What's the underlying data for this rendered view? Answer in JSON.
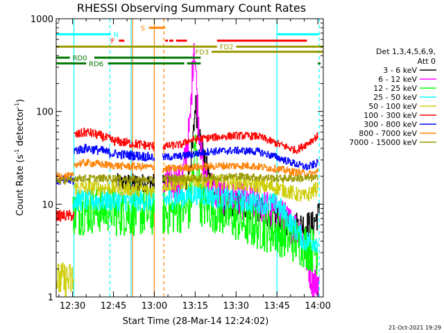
{
  "chart_data": {
    "type": "line",
    "title": "RHESSI Observing Summary Count Rates",
    "xlabel": "Start Time (28-Mar-14 12:24:02)",
    "ylabel": "Count Rate (s",
    "ylabel_sup": "-1",
    "ylabel_mid": " detector",
    "ylabel_close": ")",
    "yscale": "log",
    "ylim": [
      1,
      1000
    ],
    "xlim_min": [
      744,
      842
    ],
    "ytick_labels": [
      "1",
      "10",
      "100",
      "1000"
    ],
    "ytick_values": [
      1,
      10,
      100,
      1000
    ],
    "xtick_labels": [
      "12:30",
      "12:45",
      "13:00",
      "13:15",
      "13:30",
      "13:45",
      "14:00"
    ],
    "xtick_values": [
      750,
      765,
      780,
      795,
      810,
      825,
      840
    ],
    "legend_header": [
      "Det 1,3,4,5,6,9,",
      "Att 0"
    ],
    "footer": "21-Oct-2021 19:29",
    "series": [
      {
        "name": "3 - 6 keV",
        "color": "#000000",
        "segments": [
          {
            "x": [
              766,
              780
            ],
            "y": [
              17,
              17
            ],
            "noise": 0.1
          },
          {
            "x": [
              783,
              792
            ],
            "y": [
              17,
              17
            ],
            "noise": 0.1
          },
          {
            "x": [
              792,
              794,
              795,
              796,
              798,
              802,
              806,
              812,
              818,
              825,
              832,
              838,
              840.5
            ],
            "y": [
              18,
              40,
              125,
              70,
              30,
              13,
              10,
              10,
              9,
              7,
              6,
              6,
              8
            ],
            "noise": 0.15
          }
        ]
      },
      {
        "name": "6 - 12 keV",
        "color": "#ff00ff",
        "segments": [
          {
            "x": [
              783,
              790,
              793,
              794.5,
              796,
              798,
              804,
              810,
              818,
              825,
              830,
              834,
              836,
              838,
              840.5
            ],
            "y": [
              16,
              17,
              70,
              600,
              90,
              20,
              12,
              11,
              10,
              8,
              6,
              5,
              2.5,
              1.5,
              1.5
            ],
            "noise": 0.2
          }
        ]
      },
      {
        "name": "12 - 25 keV",
        "color": "#00ff00",
        "segments": [
          {
            "x": [
              750,
              765
            ],
            "y": [
              8,
              9
            ],
            "noise": 0.25
          },
          {
            "x": [
              765,
              780
            ],
            "y": [
              8,
              8
            ],
            "noise": 0.25
          },
          {
            "x": [
              783,
              793,
              795,
              797,
              805,
              815,
              825,
              832,
              840
            ],
            "y": [
              8,
              9,
              40,
              10,
              8,
              6,
              5,
              4,
              3
            ],
            "noise": 0.25
          }
        ]
      },
      {
        "name": "25 - 50 keV",
        "color": "#00ffff",
        "segments": [
          {
            "x": [
              750,
              765,
              780
            ],
            "y": [
              11,
              11,
              11
            ],
            "noise": 0.12
          },
          {
            "x": [
              783,
              795,
              810,
              825,
              835,
              840
            ],
            "y": [
              11,
              13,
              11,
              10,
              4,
              4
            ],
            "noise": 0.12
          }
        ]
      },
      {
        "name": "50 - 100 keV",
        "color": "#cccc00",
        "segments": [
          {
            "x": [
              744,
              748,
              750.5
            ],
            "y": [
              1.5,
              1.5,
              1.5
            ],
            "noise": 0.2
          },
          {
            "x": [
              750.5,
              758,
              765,
              780
            ],
            "y": [
              15,
              15,
              15,
              14
            ],
            "noise": 0.08
          },
          {
            "x": [
              783,
              795,
              810,
              825,
              835,
              840
            ],
            "y": [
              16,
              18,
              17,
              15,
              12,
              15
            ],
            "noise": 0.08
          }
        ]
      },
      {
        "name": "100 - 300 keV",
        "color": "#ff0000",
        "segments": [
          {
            "x": [
              744,
              750.5
            ],
            "y": [
              7.5,
              7.5
            ],
            "noise": 0.06
          },
          {
            "x": [
              750.5,
              755,
              760,
              765,
              780
            ],
            "y": [
              55,
              60,
              55,
              48,
              42
            ],
            "noise": 0.05
          },
          {
            "x": [
              783,
              790,
              792,
              795,
              800,
              810,
              818,
              825,
              832,
              836,
              840
            ],
            "y": [
              42,
              44,
              48,
              50,
              52,
              55,
              54,
              45,
              38,
              45,
              55
            ],
            "noise": 0.04
          }
        ]
      },
      {
        "name": "300 - 800 keV",
        "color": "#0000ff",
        "segments": [
          {
            "x": [
              744,
              750.5
            ],
            "y": [
              18,
              18
            ],
            "noise": 0.05
          },
          {
            "x": [
              750.5,
              755,
              760,
              765,
              780
            ],
            "y": [
              38,
              40,
              38,
              35,
              32
            ],
            "noise": 0.05
          },
          {
            "x": [
              783,
              790,
              795,
              800,
              810,
              818,
              825,
              832,
              836,
              840
            ],
            "y": [
              32,
              33,
              35,
              37,
              38,
              37,
              32,
              27,
              25,
              28
            ],
            "noise": 0.04
          }
        ]
      },
      {
        "name": "800 - 7000 keV",
        "color": "#ff8000",
        "segments": [
          {
            "x": [
              744,
              750.5
            ],
            "y": [
              20,
              20
            ],
            "noise": 0.04
          },
          {
            "x": [
              750.5,
              755,
              765,
              780
            ],
            "y": [
              27,
              28,
              26,
              25
            ],
            "noise": 0.04
          },
          {
            "x": [
              783,
              795,
              805,
              815,
              825,
              832,
              838,
              840
            ],
            "y": [
              24,
              25,
              26,
              26,
              24,
              22,
              21,
              23
            ],
            "noise": 0.04
          }
        ]
      },
      {
        "name": "7000 - 15000 keV",
        "color": "#999900",
        "segments": [
          {
            "x": [
              744,
              750.5
            ],
            "y": [
              18,
              18
            ],
            "noise": 0.04
          },
          {
            "x": [
              750.5,
              765,
              780
            ],
            "y": [
              19,
              19,
              18
            ],
            "noise": 0.04
          },
          {
            "x": [
              783,
              795,
              810,
              825,
              840
            ],
            "y": [
              19,
              19,
              20,
              19,
              19
            ],
            "noise": 0.04
          }
        ]
      }
    ],
    "flags": [
      {
        "label": "N",
        "color": "#00ffff",
        "y": 680,
        "segments": [
          [
            744,
            764
          ],
          [
            825,
            840.5
          ]
        ],
        "label_x": 765
      },
      {
        "label": "F",
        "color": "#ff0000",
        "y": 580,
        "segments": [
          [
            767,
            769
          ],
          [
            784,
            785
          ],
          [
            785.5,
            787
          ],
          [
            788,
            792
          ],
          [
            803,
            836
          ]
        ],
        "label_x": 764
      },
      {
        "label": "S",
        "color": "#ff8000",
        "y": 800,
        "segments": [
          [
            778,
            784
          ]
        ],
        "label_x": 775
      },
      {
        "label": "FD2",
        "color": "#999900",
        "y": 500,
        "segments": [
          [
            744,
            803
          ],
          [
            810,
            842
          ]
        ],
        "label_x": 804
      },
      {
        "label": "FD3",
        "color": "#999900",
        "y": 440,
        "segments": [
          [
            801,
            842
          ]
        ],
        "label_x": 795
      },
      {
        "label": "RD0",
        "color": "#007700",
        "y": 380,
        "segments": [
          [
            744,
            749
          ],
          [
            758,
            797
          ]
        ],
        "label_x": 750
      },
      {
        "label": "RD6",
        "color": "#007700",
        "y": 330,
        "segments": [
          [
            744,
            755
          ],
          [
            763,
            791
          ],
          [
            792,
            797
          ],
          [
            840,
            841
          ]
        ],
        "label_x": 756
      }
    ],
    "vlines": [
      {
        "x": 750.5,
        "color": "#00ffff",
        "dash": false
      },
      {
        "x": 763.7,
        "color": "#00ffff",
        "dash": true
      },
      {
        "x": 771.5,
        "color": "#00ffff",
        "dash": false
      },
      {
        "x": 772,
        "color": "#ff8000",
        "dash": false
      },
      {
        "x": 780,
        "color": "#ff8000",
        "dash": false
      },
      {
        "x": 783.5,
        "color": "#ff8000",
        "dash": true
      },
      {
        "x": 825,
        "color": "#00ffff",
        "dash": false
      },
      {
        "x": 840.5,
        "color": "#00ffff",
        "dash": true
      }
    ]
  }
}
